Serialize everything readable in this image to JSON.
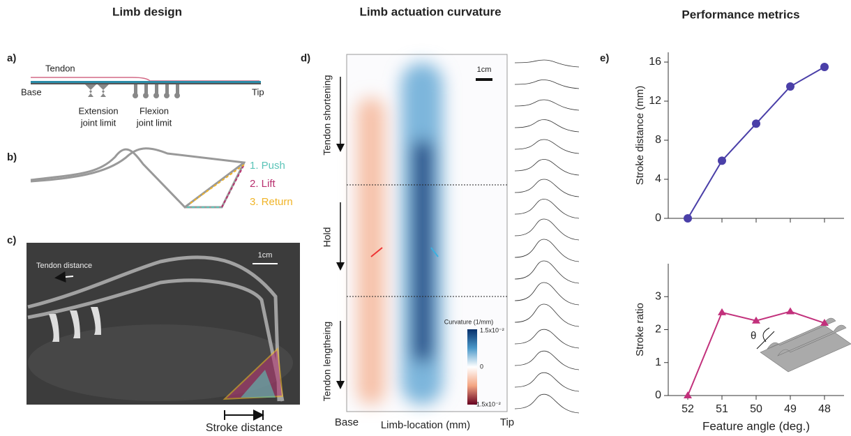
{
  "headers": {
    "left": "Limb design",
    "middle": "Limb actuation curvature",
    "right": "Performance metrics"
  },
  "panel_a": {
    "label": "a)",
    "tendon": "Tendon",
    "base": "Base",
    "tip": "Tip",
    "extension": "Extension",
    "extension_2": "joint limit",
    "flexion": "Flexion",
    "flexion_2": "joint limit"
  },
  "panel_b": {
    "label": "b)",
    "push": "1. Push",
    "lift": "2. Lift",
    "return": "3. Return"
  },
  "panel_c": {
    "label": "c)",
    "tendon_distance": "Tendon distance",
    "scale": "1cm",
    "stroke_distance": "Stroke distance"
  },
  "panel_d": {
    "label": "d)",
    "shortening": "Tendon shortening",
    "hold": "Hold",
    "lengthening": "Tendon lengtheing",
    "scale": "1cm",
    "colorbar_title": "Curvature (1/mm)",
    "colorbar_max": "1.5x10⁻²",
    "colorbar_mid": "0",
    "colorbar_min": "-1.5x10⁻²",
    "base": "Base",
    "xlabel": "Limb-location (mm)",
    "tip": "Tip"
  },
  "panel_e": {
    "label": "e)",
    "theta": "θ"
  },
  "chart_data": [
    {
      "type": "line",
      "y_label": "Stroke distance (mm)",
      "categories": [
        null,
        null,
        null,
        null,
        null
      ],
      "values": [
        0,
        5.9,
        9.7,
        13.5,
        15.5
      ],
      "color": "#4a3fa8",
      "marker": "circle",
      "ylim": [
        0,
        17
      ],
      "yticks": [
        0,
        4,
        8,
        12,
        16
      ]
    },
    {
      "type": "line",
      "y_label": "Stroke ratio",
      "x_label": "Feature angle (deg.)",
      "categories": [
        "52",
        "51",
        "50",
        "49",
        "48"
      ],
      "values": [
        0,
        2.52,
        2.27,
        2.55,
        2.2
      ],
      "color": "#c2317c",
      "marker": "triangle",
      "ylim": [
        0,
        4
      ],
      "yticks": [
        0,
        1,
        2,
        3
      ]
    }
  ]
}
